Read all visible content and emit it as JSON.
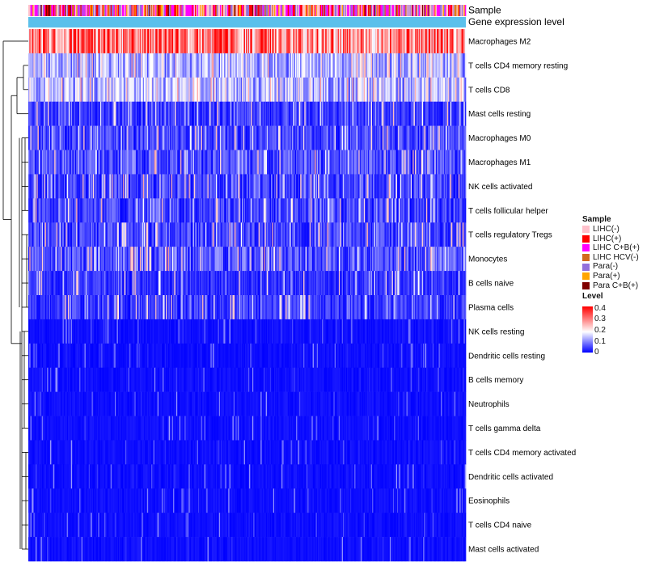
{
  "chart_data": {
    "type": "heatmap",
    "title": "",
    "annotation_tracks": [
      "Sample",
      "Gene expression level"
    ],
    "rows": [
      {
        "name": "Macrophages M2",
        "mean": 0.31
      },
      {
        "name": "T cells CD4 memory resting",
        "mean": 0.12
      },
      {
        "name": "T cells CD8",
        "mean": 0.13
      },
      {
        "name": "Mast cells resting",
        "mean": 0.06
      },
      {
        "name": "Macrophages M0",
        "mean": 0.07
      },
      {
        "name": "Macrophages M1",
        "mean": 0.08
      },
      {
        "name": "NK cells activated",
        "mean": 0.07
      },
      {
        "name": "T cells follicular helper",
        "mean": 0.07
      },
      {
        "name": "T cells regulatory  Tregs",
        "mean": 0.07
      },
      {
        "name": "Monocytes",
        "mean": 0.09
      },
      {
        "name": "B cells naive",
        "mean": 0.05
      },
      {
        "name": "Plasma cells",
        "mean": 0.06
      },
      {
        "name": "NK cells resting",
        "mean": 0.02
      },
      {
        "name": "Dendritic cells resting",
        "mean": 0.03
      },
      {
        "name": "B cells memory",
        "mean": 0.03
      },
      {
        "name": "Neutrophils",
        "mean": 0.03
      },
      {
        "name": "T cells gamma delta",
        "mean": 0.02
      },
      {
        "name": "T cells CD4 memory activated",
        "mean": 0.01
      },
      {
        "name": "Dendritic cells activated",
        "mean": 0.01
      },
      {
        "name": "Eosinophils",
        "mean": 0.01
      },
      {
        "name": "T cells CD4 naive",
        "mean": 0.01
      },
      {
        "name": "Mast cells activated",
        "mean": 0.01
      }
    ],
    "legend_sample": {
      "title": "Sample",
      "items": [
        {
          "label": "LIHC(-)",
          "color": "#ffc0cb"
        },
        {
          "label": "LIHC(+)",
          "color": "#ff0000"
        },
        {
          "label": "LIHC C+B(+)",
          "color": "#ff00ff"
        },
        {
          "label": "LIHC HCV(-)",
          "color": "#d2691e"
        },
        {
          "label": "Para(-)",
          "color": "#9370db"
        },
        {
          "label": "Para(+)",
          "color": "#ffa500"
        },
        {
          "label": "Para C+B(+)",
          "color": "#800000"
        }
      ]
    },
    "legend_level": {
      "title": "Level",
      "ticks": [
        "0.4",
        "0.3",
        "0.2",
        "0.1",
        "0"
      ],
      "tick_values": [
        0.4,
        0.3,
        0.2,
        0.1,
        0
      ],
      "range": [
        0,
        0.42
      ],
      "colors": {
        "low": "#0000ff",
        "mid": "#ffffff",
        "high": "#ff0000"
      }
    },
    "gene_level_color": "#5bc0eb",
    "n_samples": 420
  }
}
